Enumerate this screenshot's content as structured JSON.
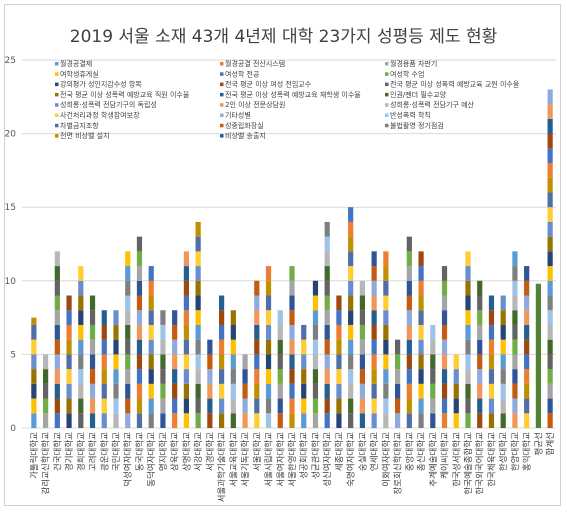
{
  "chart_data": {
    "type": "bar",
    "stacked": true,
    "title": "2019 서울 소재 43개 4년제 대학 23가지 성평등 제도 현황",
    "ylim": [
      0,
      25
    ],
    "yticks": [
      0,
      5,
      10,
      15,
      20,
      25
    ],
    "grid": true,
    "legend_position": "top",
    "categories": [
      "가톨릭대학교",
      "감리교신학대학교",
      "건국대학교",
      "경기대학교",
      "경희대학교",
      "고려대학교",
      "광운대학교",
      "국민대학교",
      "덕성여자대학교",
      "동국대학교",
      "동덕여자대학교",
      "명지대학교",
      "삼육대학교",
      "상명대학교",
      "서강대학교",
      "서경대학교",
      "서울과학기술대학교",
      "서울교육대학교",
      "서울기독대학교",
      "서울대학교",
      "서울시립대학교",
      "서울여자대학교",
      "서울한영대학교",
      "성공회대학교",
      "성균관대학교",
      "성신여자대학교",
      "세종대학교",
      "숙명여자대학교",
      "숭실대학교",
      "연세대학교",
      "이화여자대학교",
      "장로회신학대학교",
      "중앙대학교",
      "총신대학교",
      "추계예술대학교",
      "케이씨대학교",
      "한국성서대학교",
      "한국예술종합학교",
      "한국외국어대학교",
      "한국체육대학교",
      "한성대학교",
      "한양대학교",
      "홍익대학교",
      "평균선",
      "합계선"
    ],
    "totals": [
      7.5,
      5,
      12,
      9,
      11,
      9,
      8,
      8,
      12,
      13,
      11,
      8,
      8,
      12,
      14,
      6,
      9,
      8,
      5,
      10,
      11,
      8,
      11,
      7,
      10,
      14,
      9,
      15,
      10,
      12,
      12,
      6,
      13,
      12,
      7,
      11,
      5,
      12,
      10,
      9,
      9,
      12,
      11,
      9.8,
      23
    ],
    "series": [
      {
        "name": "월경공결제",
        "color": "#5b9bd5"
      },
      {
        "name": "월경공결 전산시스템",
        "color": "#ed7d31"
      },
      {
        "name": "월경용품 자판기",
        "color": "#a5a5a5"
      },
      {
        "name": "여학생휴게실",
        "color": "#ffc000"
      },
      {
        "name": "여성학 전공",
        "color": "#4472c4"
      },
      {
        "name": "여성학 수업",
        "color": "#70ad47"
      },
      {
        "name": "강의평가 성인지감수성 항목",
        "color": "#264478"
      },
      {
        "name": "전국 평균 이상 여성 전임교수",
        "color": "#9e480e"
      },
      {
        "name": "전국 평균 이상 성폭력 예방교육 교원 이수율",
        "color": "#636363"
      },
      {
        "name": "전국 평균 이상 성폭력 예방교육 직원 이수율",
        "color": "#997300"
      },
      {
        "name": "전국 평균 이상 성폭력 예방교육 재학생 이수율",
        "color": "#255e91"
      },
      {
        "name": "인권/젠더 필수교양",
        "color": "#43682b"
      },
      {
        "name": "성희롱·성폭력 전담기구의 독립성",
        "color": "#698ed0"
      },
      {
        "name": "2인 이상 전문상담원",
        "color": "#f1975a"
      },
      {
        "name": "성희롱·성폭력 전담기구 예산",
        "color": "#b7b7b7"
      },
      {
        "name": "사건처리과정 학생참여보장",
        "color": "#ffcd33"
      },
      {
        "name": "기타성별",
        "color": "#8faadc"
      },
      {
        "name": "반성폭력 학칙",
        "color": "#9dc3e6"
      },
      {
        "name": "차별금지조항",
        "color": "#4f6fa8"
      },
      {
        "name": "성중립화장실",
        "color": "#c55a11"
      },
      {
        "name": "불법촬영 정기점검",
        "color": "#7f7f7f"
      },
      {
        "name": "전면 비상벨 설치",
        "color": "#bf9000"
      },
      {
        "name": "비상벨 송출지",
        "color": "#2f5597"
      }
    ]
  }
}
